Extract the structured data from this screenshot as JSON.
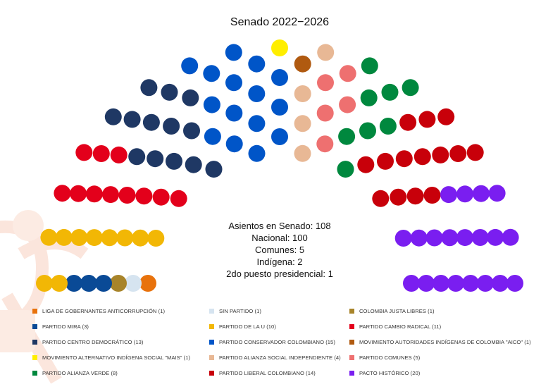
{
  "chart_data": {
    "type": "parliament",
    "title": "Senado 2022−2026",
    "rows": 8,
    "summary": [
      "Asientos en Senado: 108",
      "Nacional: 100",
      "Comunes: 5",
      "Indígena: 2",
      "2do puesto presidencial: 1"
    ],
    "total_seats": 108,
    "parties": [
      {
        "name": "LIGA DE GOBERNANTES ANTICORRUPCIÓN (1)",
        "seats": 1,
        "color": "#e8720c"
      },
      {
        "name": "SIN PARTIDO (1)",
        "seats": 1,
        "color": "#d6e4f0"
      },
      {
        "name": "COLOMBIA JUSTA LIBRES (1)",
        "seats": 1,
        "color": "#a8842a"
      },
      {
        "name": "PARTIDO MIRA (3)",
        "seats": 3,
        "color": "#0a4a96"
      },
      {
        "name": "PARTIDO DE LA U (10)",
        "seats": 10,
        "color": "#f2b705"
      },
      {
        "name": "PARTIDO CAMBIO RADICAL (11)",
        "seats": 11,
        "color": "#e3001b"
      },
      {
        "name": "PARTIDO CENTRO DEMOCRÁTICO (13)",
        "seats": 13,
        "color": "#1f3864"
      },
      {
        "name": "PARTIDO CONSERVADOR COLOMBIANO (15)",
        "seats": 15,
        "color": "#0055c8"
      },
      {
        "name": "MOVIMIENTO ALTERNATIVO INDÍGENA SOCIAL \"MAIS\" (1)",
        "seats": 1,
        "color": "#ffee00"
      },
      {
        "name": "MOVIMIENTO AUTORIDADES INDÍGENAS DE COLOMBIA \"AICO\" (1)",
        "seats": 1,
        "color": "#b05a10"
      },
      {
        "name": "PARTIDO ALIANZA SOCIAL INDEPENDIENTE (4)",
        "seats": 4,
        "color": "#e8b895"
      },
      {
        "name": "PARTIDO COMUNES (5)",
        "seats": 5,
        "color": "#ee7070"
      },
      {
        "name": "PARTIDO ALIANZA VERDE (8)",
        "seats": 8,
        "color": "#00883e"
      },
      {
        "name": "PARTIDO LIBERAL COLOMBIANO (14)",
        "seats": 14,
        "color": "#c8000a"
      },
      {
        "name": "PACTO HISTÓRICO (20)",
        "seats": 20,
        "color": "#7a1ef0"
      }
    ],
    "legend_order": [
      0,
      1,
      2,
      3,
      4,
      5,
      6,
      7,
      9,
      8,
      10,
      11,
      12,
      13,
      14
    ]
  }
}
